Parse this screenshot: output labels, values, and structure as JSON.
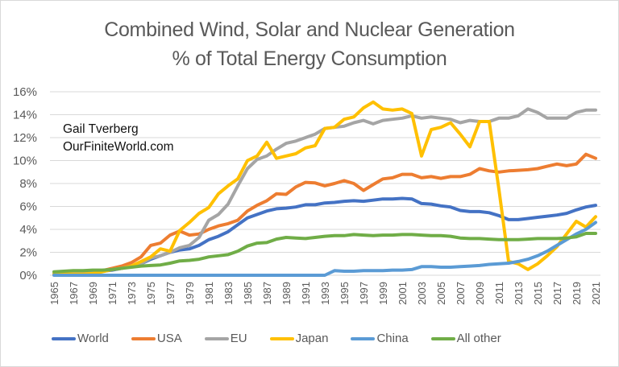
{
  "title_line1": "Combined Wind, Solar and Nuclear Generation",
  "title_line2": "% of Total Energy Consumption",
  "credit_line1": "Gail Tverberg",
  "credit_line2": "OurFiniteWorld.com",
  "chart_data": {
    "type": "line",
    "title": "Combined Wind, Solar and Nuclear Generation % of Total Energy Consumption",
    "xlabel": "",
    "ylabel": "",
    "ylim": [
      0,
      16
    ],
    "yticks": [
      "0%",
      "2%",
      "4%",
      "6%",
      "8%",
      "10%",
      "12%",
      "14%",
      "16%"
    ],
    "grid": true,
    "legend": "bottom",
    "x": [
      1965,
      1966,
      1967,
      1968,
      1969,
      1970,
      1971,
      1972,
      1973,
      1974,
      1975,
      1976,
      1977,
      1978,
      1979,
      1980,
      1981,
      1982,
      1983,
      1984,
      1985,
      1986,
      1987,
      1988,
      1989,
      1990,
      1991,
      1992,
      1993,
      1994,
      1995,
      1996,
      1997,
      1998,
      1999,
      2000,
      2001,
      2002,
      2003,
      2004,
      2005,
      2006,
      2007,
      2008,
      2009,
      2010,
      2011,
      2012,
      2013,
      2014,
      2015,
      2016,
      2017,
      2018,
      2019,
      2020,
      2021
    ],
    "xtick_labels": [
      "1965",
      "1967",
      "1969",
      "1971",
      "1973",
      "1975",
      "1977",
      "1979",
      "1981",
      "1983",
      "1985",
      "1987",
      "1989",
      "1991",
      "1993",
      "1995",
      "1997",
      "1999",
      "2001",
      "2003",
      "2005",
      "2007",
      "2009",
      "2011",
      "2013",
      "2015",
      "2017",
      "2019",
      "2021"
    ],
    "series": [
      {
        "name": "World",
        "color": "#4472c4",
        "values": [
          0.1,
          0.15,
          0.2,
          0.25,
          0.3,
          0.35,
          0.45,
          0.6,
          0.8,
          1.0,
          1.4,
          1.7,
          2.0,
          2.2,
          2.3,
          2.6,
          3.1,
          3.4,
          3.8,
          4.4,
          5.0,
          5.3,
          5.6,
          5.8,
          5.85,
          5.95,
          6.15,
          6.15,
          6.3,
          6.35,
          6.45,
          6.5,
          6.45,
          6.55,
          6.65,
          6.65,
          6.7,
          6.65,
          6.25,
          6.2,
          6.05,
          5.95,
          5.65,
          5.55,
          5.55,
          5.45,
          5.2,
          4.85,
          4.85,
          4.95,
          5.05,
          5.15,
          5.25,
          5.4,
          5.7,
          5.95,
          6.1
        ]
      },
      {
        "name": "USA",
        "color": "#ed7d31",
        "values": [
          0.1,
          0.15,
          0.2,
          0.25,
          0.3,
          0.4,
          0.6,
          0.8,
          1.1,
          1.6,
          2.6,
          2.8,
          3.5,
          3.85,
          3.5,
          3.6,
          4.0,
          4.3,
          4.5,
          4.8,
          5.6,
          6.1,
          6.5,
          7.1,
          7.05,
          7.7,
          8.1,
          8.05,
          7.8,
          8.0,
          8.25,
          8.0,
          7.4,
          7.9,
          8.4,
          8.5,
          8.8,
          8.8,
          8.5,
          8.6,
          8.45,
          8.6,
          8.6,
          8.8,
          9.3,
          9.1,
          9.0,
          9.1,
          9.15,
          9.2,
          9.3,
          9.5,
          9.7,
          9.55,
          9.7,
          10.55,
          10.2
        ]
      },
      {
        "name": "EU",
        "color": "#a5a5a5",
        "values": [
          0.1,
          0.15,
          0.2,
          0.25,
          0.3,
          0.4,
          0.5,
          0.6,
          0.8,
          1.0,
          1.5,
          1.7,
          2.0,
          2.4,
          2.6,
          3.3,
          4.8,
          5.3,
          6.2,
          7.8,
          9.3,
          10.1,
          10.4,
          11.0,
          11.5,
          11.7,
          12.0,
          12.3,
          12.8,
          12.9,
          13.0,
          13.3,
          13.5,
          13.2,
          13.5,
          13.6,
          13.7,
          13.9,
          13.7,
          13.8,
          13.7,
          13.6,
          13.3,
          13.5,
          13.4,
          13.4,
          13.7,
          13.7,
          13.9,
          14.5,
          14.2,
          13.7,
          13.7,
          13.7,
          14.2,
          14.4,
          14.4
        ]
      },
      {
        "name": "Japan",
        "color": "#ffc000",
        "values": [
          0.1,
          0.1,
          0.1,
          0.1,
          0.15,
          0.3,
          0.5,
          0.6,
          0.8,
          1.2,
          1.6,
          2.3,
          2.1,
          3.9,
          4.6,
          5.4,
          5.9,
          7.1,
          7.8,
          8.4,
          10.0,
          10.4,
          11.6,
          10.2,
          10.4,
          10.6,
          11.1,
          11.3,
          12.8,
          12.9,
          13.6,
          13.8,
          14.6,
          15.1,
          14.5,
          14.4,
          14.5,
          14.1,
          10.4,
          12.7,
          12.9,
          13.3,
          12.3,
          11.2,
          13.4,
          13.4,
          7.5,
          1.2,
          1.0,
          0.5,
          1.0,
          1.7,
          2.5,
          3.6,
          4.7,
          4.2,
          5.1
        ]
      },
      {
        "name": "China",
        "color": "#5b9bd5",
        "values": [
          0,
          0,
          0,
          0,
          0,
          0,
          0,
          0,
          0,
          0,
          0,
          0,
          0,
          0,
          0,
          0,
          0,
          0,
          0,
          0,
          0,
          0,
          0,
          0,
          0,
          0,
          0,
          0,
          0,
          0.4,
          0.35,
          0.35,
          0.4,
          0.4,
          0.4,
          0.45,
          0.45,
          0.5,
          0.75,
          0.75,
          0.7,
          0.7,
          0.75,
          0.8,
          0.85,
          0.95,
          1.0,
          1.05,
          1.2,
          1.4,
          1.7,
          2.1,
          2.6,
          3.1,
          3.6,
          4.0,
          4.6
        ]
      },
      {
        "name": "All other",
        "color": "#70ad47",
        "values": [
          0.3,
          0.35,
          0.4,
          0.4,
          0.45,
          0.45,
          0.5,
          0.6,
          0.7,
          0.8,
          0.85,
          0.9,
          1.05,
          1.25,
          1.3,
          1.4,
          1.6,
          1.7,
          1.8,
          2.1,
          2.55,
          2.8,
          2.85,
          3.15,
          3.3,
          3.25,
          3.2,
          3.3,
          3.4,
          3.45,
          3.45,
          3.55,
          3.5,
          3.45,
          3.5,
          3.5,
          3.55,
          3.55,
          3.5,
          3.45,
          3.45,
          3.4,
          3.25,
          3.2,
          3.2,
          3.15,
          3.1,
          3.1,
          3.1,
          3.15,
          3.2,
          3.2,
          3.2,
          3.25,
          3.35,
          3.65,
          3.65
        ]
      }
    ]
  }
}
